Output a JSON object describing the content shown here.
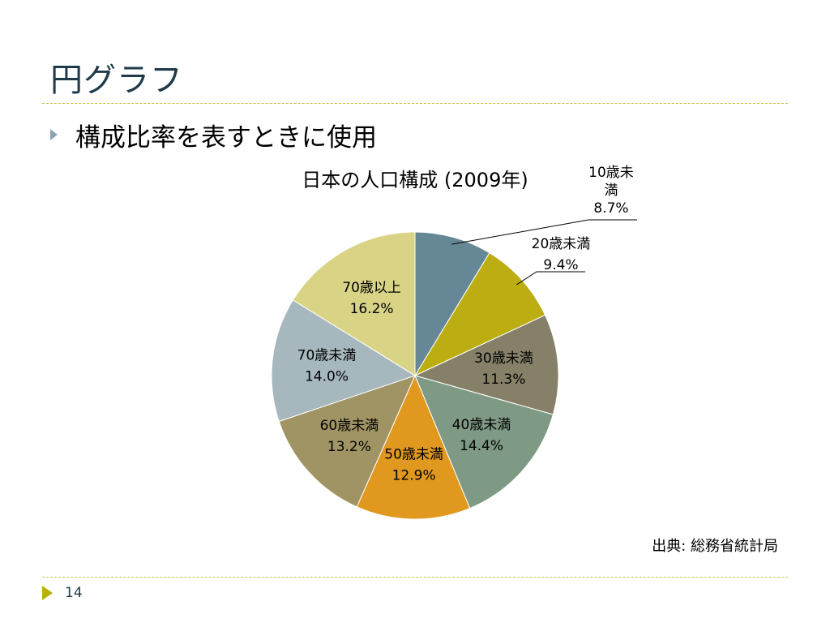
{
  "slide": {
    "title": "円グラフ",
    "bullet": "構成比率を表すときに使用",
    "source": "出典: 総務省統計局",
    "page_number": "14"
  },
  "chart_data": {
    "type": "pie",
    "title": "日本の人口構成 (2009年)",
    "categories": [
      "10歳未満",
      "20歳未満",
      "30歳未満",
      "40歳未満",
      "50歳未満",
      "60歳未満",
      "70歳未満",
      "70歳以上"
    ],
    "values": [
      8.7,
      9.4,
      11.3,
      14.4,
      12.9,
      13.2,
      14.0,
      16.2
    ],
    "value_labels": [
      "8.7%",
      "9.4%",
      "11.3%",
      "14.4%",
      "12.9%",
      "13.2%",
      "14.0%",
      "16.2%"
    ],
    "label_lines": [
      [
        "10歳未",
        "満",
        "8.7%"
      ],
      [
        "20歳未満",
        "9.4%"
      ],
      [
        "30歳未満",
        "11.3%"
      ],
      [
        "40歳未満",
        "14.4%"
      ],
      [
        "50歳未満",
        "12.9%"
      ],
      [
        "60歳未満",
        "13.2%"
      ],
      [
        "70歳未満",
        "14.0%"
      ],
      [
        "70歳以上",
        "16.2%"
      ]
    ],
    "colors": [
      "#668896",
      "#bcae12",
      "#858067",
      "#7f9a84",
      "#e0991e",
      "#a09464",
      "#a6b8be",
      "#d9d386"
    ],
    "start": "12 o'clock",
    "direction": "clockwise",
    "legend": "none"
  }
}
